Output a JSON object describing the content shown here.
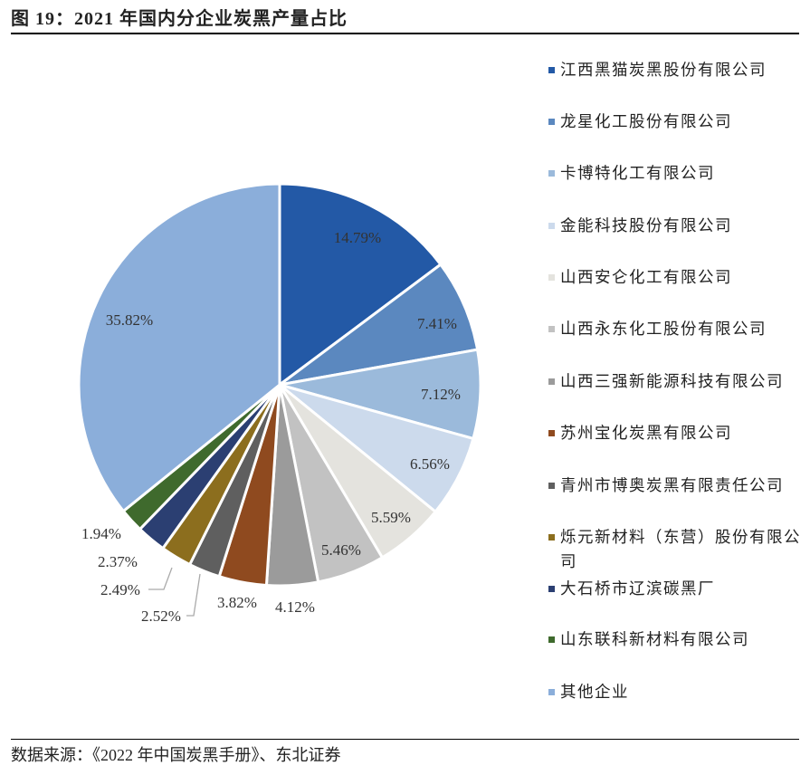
{
  "title": "图 19：2021 年国内分企业炭黑产量占比",
  "footer": "数据来源：《2022 年中国炭黑手册》、东北证券",
  "chart_data": {
    "type": "pie",
    "title": "图 19：2021 年国内分企业炭黑产量占比",
    "legend_position": "right",
    "start_angle": "12 o'clock, clockwise",
    "slices": [
      {
        "name": "江西黑猫炭黑股份有限公司",
        "value": 14.79,
        "label": "14.79%",
        "color": "#2359A6"
      },
      {
        "name": "龙星化工股份有限公司",
        "value": 7.41,
        "label": "7.41%",
        "color": "#5B88BF"
      },
      {
        "name": "卡博特化工有限公司",
        "value": 7.12,
        "label": "7.12%",
        "color": "#9BBADB"
      },
      {
        "name": "金能科技股份有限公司",
        "value": 6.56,
        "label": "6.56%",
        "color": "#CCDAEC"
      },
      {
        "name": "山西安仑化工有限公司",
        "value": 5.59,
        "label": "5.59%",
        "color": "#E4E3DE"
      },
      {
        "name": "山西永东化工股份有限公司",
        "value": 5.46,
        "label": "5.46%",
        "color": "#C2C2C2"
      },
      {
        "name": "山西三强新能源科技有限公司",
        "value": 4.12,
        "label": "4.12%",
        "color": "#9B9B9B"
      },
      {
        "name": "苏州宝化炭黑有限公司",
        "value": 3.82,
        "label": "3.82%",
        "color": "#8F4A1F"
      },
      {
        "name": "青州市博奥炭黑有限责任公司",
        "value": 2.52,
        "label": "2.52%",
        "color": "#5F5F5F"
      },
      {
        "name": "烁元新材料（东营）股份有限公司",
        "value": 2.49,
        "label": "2.49%",
        "color": "#8C6E1E"
      },
      {
        "name": "大石桥市辽滨碳黑厂",
        "value": 2.37,
        "label": "2.37%",
        "color": "#2B3F72"
      },
      {
        "name": "山东联科新材料有限公司",
        "value": 1.94,
        "label": "1.94%",
        "color": "#3F6A2D"
      },
      {
        "name": "其他企业",
        "value": 35.82,
        "label": "35.82%",
        "color": "#8BAEDA"
      }
    ]
  }
}
